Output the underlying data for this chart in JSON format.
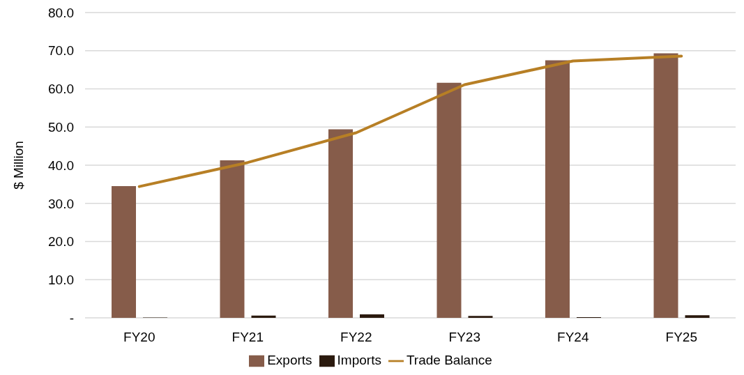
{
  "chart_data": {
    "type": "bar",
    "ylabel": "$ Million",
    "categories": [
      "FY20",
      "FY21",
      "FY22",
      "FY23",
      "FY24",
      "FY25"
    ],
    "series": [
      {
        "name": "Exports",
        "color": "#865c4a",
        "values": [
          34.5,
          41.3,
          49.4,
          61.6,
          67.5,
          69.3
        ]
      },
      {
        "name": "Imports",
        "color": "#2b1a0e",
        "values": [
          0.1,
          0.6,
          0.9,
          0.5,
          0.2,
          0.7
        ]
      },
      {
        "name": "Trade Balance",
        "type": "line",
        "color": "#b77f25",
        "values": [
          34.4,
          40.7,
          48.5,
          61.1,
          67.3,
          68.6
        ]
      }
    ],
    "ylim": [
      0,
      80
    ],
    "yticks": [
      {
        "value": 0,
        "label": "-"
      },
      {
        "value": 10,
        "label": "10.0"
      },
      {
        "value": 20,
        "label": "20.0"
      },
      {
        "value": 30,
        "label": "30.0"
      },
      {
        "value": 40,
        "label": "40.0"
      },
      {
        "value": 50,
        "label": "50.0"
      },
      {
        "value": 60,
        "label": "60.0"
      },
      {
        "value": 70,
        "label": "70.0"
      },
      {
        "value": 80,
        "label": "80.0"
      }
    ],
    "grid": "y",
    "legend": "bottom",
    "marker": "none",
    "line_style": "solid"
  }
}
